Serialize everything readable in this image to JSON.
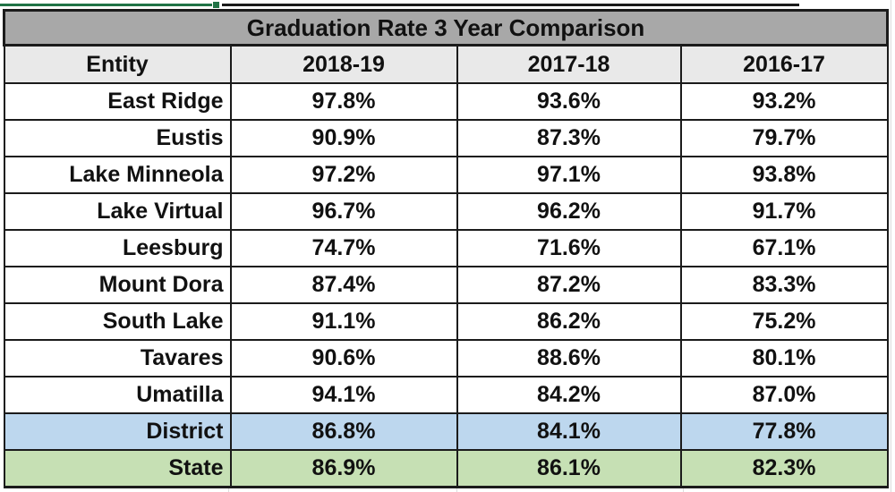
{
  "chart_data": {
    "type": "table",
    "title": "Graduation Rate 3 Year Comparison",
    "columns": [
      "Entity",
      "2018-19",
      "2017-18",
      "2016-17"
    ],
    "rows": [
      {
        "entity": "East Ridge",
        "values": [
          "97.8%",
          "93.6%",
          "93.2%"
        ],
        "kind": "school"
      },
      {
        "entity": "Eustis",
        "values": [
          "90.9%",
          "87.3%",
          "79.7%"
        ],
        "kind": "school"
      },
      {
        "entity": "Lake Minneola",
        "values": [
          "97.2%",
          "97.1%",
          "93.8%"
        ],
        "kind": "school"
      },
      {
        "entity": "Lake Virtual",
        "values": [
          "96.7%",
          "96.2%",
          "91.7%"
        ],
        "kind": "school"
      },
      {
        "entity": "Leesburg",
        "values": [
          "74.7%",
          "71.6%",
          "67.1%"
        ],
        "kind": "school"
      },
      {
        "entity": "Mount Dora",
        "values": [
          "87.4%",
          "87.2%",
          "83.3%"
        ],
        "kind": "school"
      },
      {
        "entity": "South Lake",
        "values": [
          "91.1%",
          "86.2%",
          "75.2%"
        ],
        "kind": "school"
      },
      {
        "entity": "Tavares",
        "values": [
          "90.6%",
          "88.6%",
          "80.1%"
        ],
        "kind": "school"
      },
      {
        "entity": "Umatilla",
        "values": [
          "94.1%",
          "84.2%",
          "87.0%"
        ],
        "kind": "school"
      },
      {
        "entity": "District",
        "values": [
          "86.8%",
          "84.1%",
          "77.8%"
        ],
        "kind": "district"
      },
      {
        "entity": "State",
        "values": [
          "86.9%",
          "86.1%",
          "82.3%"
        ],
        "kind": "state"
      }
    ]
  },
  "colors": {
    "title_bg": "#a8a8a8",
    "header_bg": "#e9e9e9",
    "row_bg": "#ffffff",
    "district_bg": "#bdd7ee",
    "state_bg": "#c6e0b4",
    "border": "#1b1b1b",
    "text": "#111111",
    "selection_green": "#217346",
    "gridline": "#dcdcdc"
  }
}
